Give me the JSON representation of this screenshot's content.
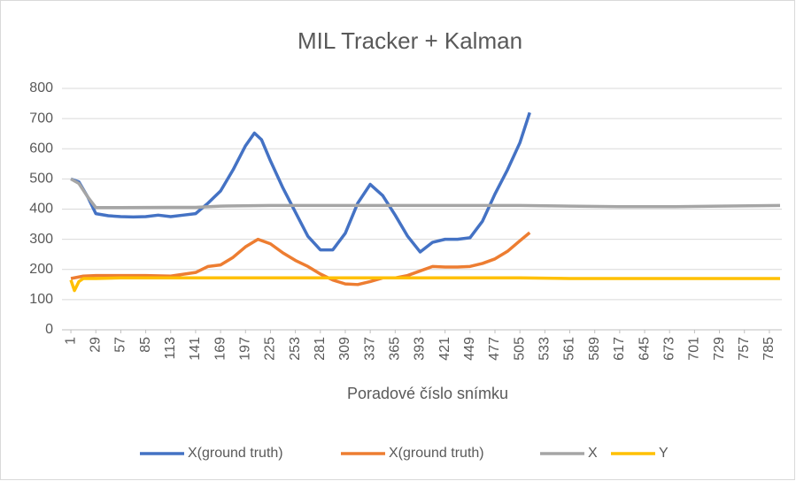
{
  "chart_data": {
    "type": "line",
    "title": "MIL Tracker + Kalman",
    "x_label": "Poradové číslo snímku",
    "xlim": [
      -9,
      799
    ],
    "ylim": [
      0,
      800
    ],
    "xticks": [
      1,
      29,
      57,
      85,
      113,
      141,
      169,
      197,
      225,
      253,
      281,
      309,
      337,
      365,
      393,
      421,
      449,
      477,
      505,
      533,
      561,
      589,
      617,
      645,
      673,
      701,
      729,
      757,
      785
    ],
    "yticks": [
      0,
      100,
      200,
      300,
      400,
      500,
      600,
      700,
      800
    ],
    "grid": true,
    "legend": "bottom",
    "series": [
      {
        "name": "X(ground truth)",
        "color": "#4472c4",
        "x": [
          1,
          10,
          20,
          29,
          43,
          57,
          71,
          85,
          99,
          113,
          127,
          141,
          155,
          169,
          183,
          197,
          207,
          215,
          225,
          239,
          253,
          267,
          281,
          295,
          309,
          323,
          337,
          351,
          365,
          379,
          393,
          407,
          421,
          435,
          449,
          463,
          477,
          491,
          505,
          516
        ],
        "values": [
          500,
          490,
          440,
          385,
          378,
          375,
          374,
          375,
          380,
          375,
          380,
          385,
          420,
          460,
          530,
          610,
          652,
          630,
          560,
          470,
          390,
          310,
          265,
          265,
          320,
          420,
          482,
          445,
          380,
          310,
          258,
          290,
          300,
          300,
          305,
          360,
          450,
          530,
          620,
          720
        ]
      },
      {
        "name": "X(ground truth)",
        "color": "#ed7d31",
        "x": [
          1,
          15,
          29,
          57,
          85,
          113,
          141,
          155,
          169,
          183,
          197,
          211,
          225,
          239,
          253,
          267,
          281,
          295,
          309,
          323,
          337,
          351,
          365,
          379,
          393,
          407,
          421,
          435,
          449,
          463,
          477,
          491,
          505,
          516
        ],
        "values": [
          170,
          178,
          180,
          180,
          180,
          178,
          190,
          210,
          215,
          240,
          275,
          300,
          285,
          255,
          230,
          210,
          185,
          165,
          152,
          150,
          160,
          172,
          172,
          180,
          195,
          210,
          208,
          208,
          210,
          220,
          235,
          260,
          295,
          322
        ]
      },
      {
        "name": "X",
        "color": "#a5a5a5",
        "x": [
          1,
          10,
          20,
          29,
          57,
          113,
          141,
          169,
          225,
          337,
          449,
          505,
          561,
          617,
          673,
          729,
          797
        ],
        "values": [
          500,
          485,
          440,
          405,
          405,
          406,
          406,
          410,
          412,
          412,
          412,
          412,
          410,
          408,
          408,
          410,
          412
        ]
      },
      {
        "name": "Y",
        "color": "#ffc000",
        "x": [
          1,
          5,
          10,
          15,
          29,
          57,
          113,
          225,
          337,
          449,
          505,
          561,
          673,
          797
        ],
        "values": [
          165,
          130,
          160,
          170,
          170,
          172,
          172,
          172,
          172,
          172,
          172,
          170,
          170,
          170
        ]
      }
    ]
  }
}
